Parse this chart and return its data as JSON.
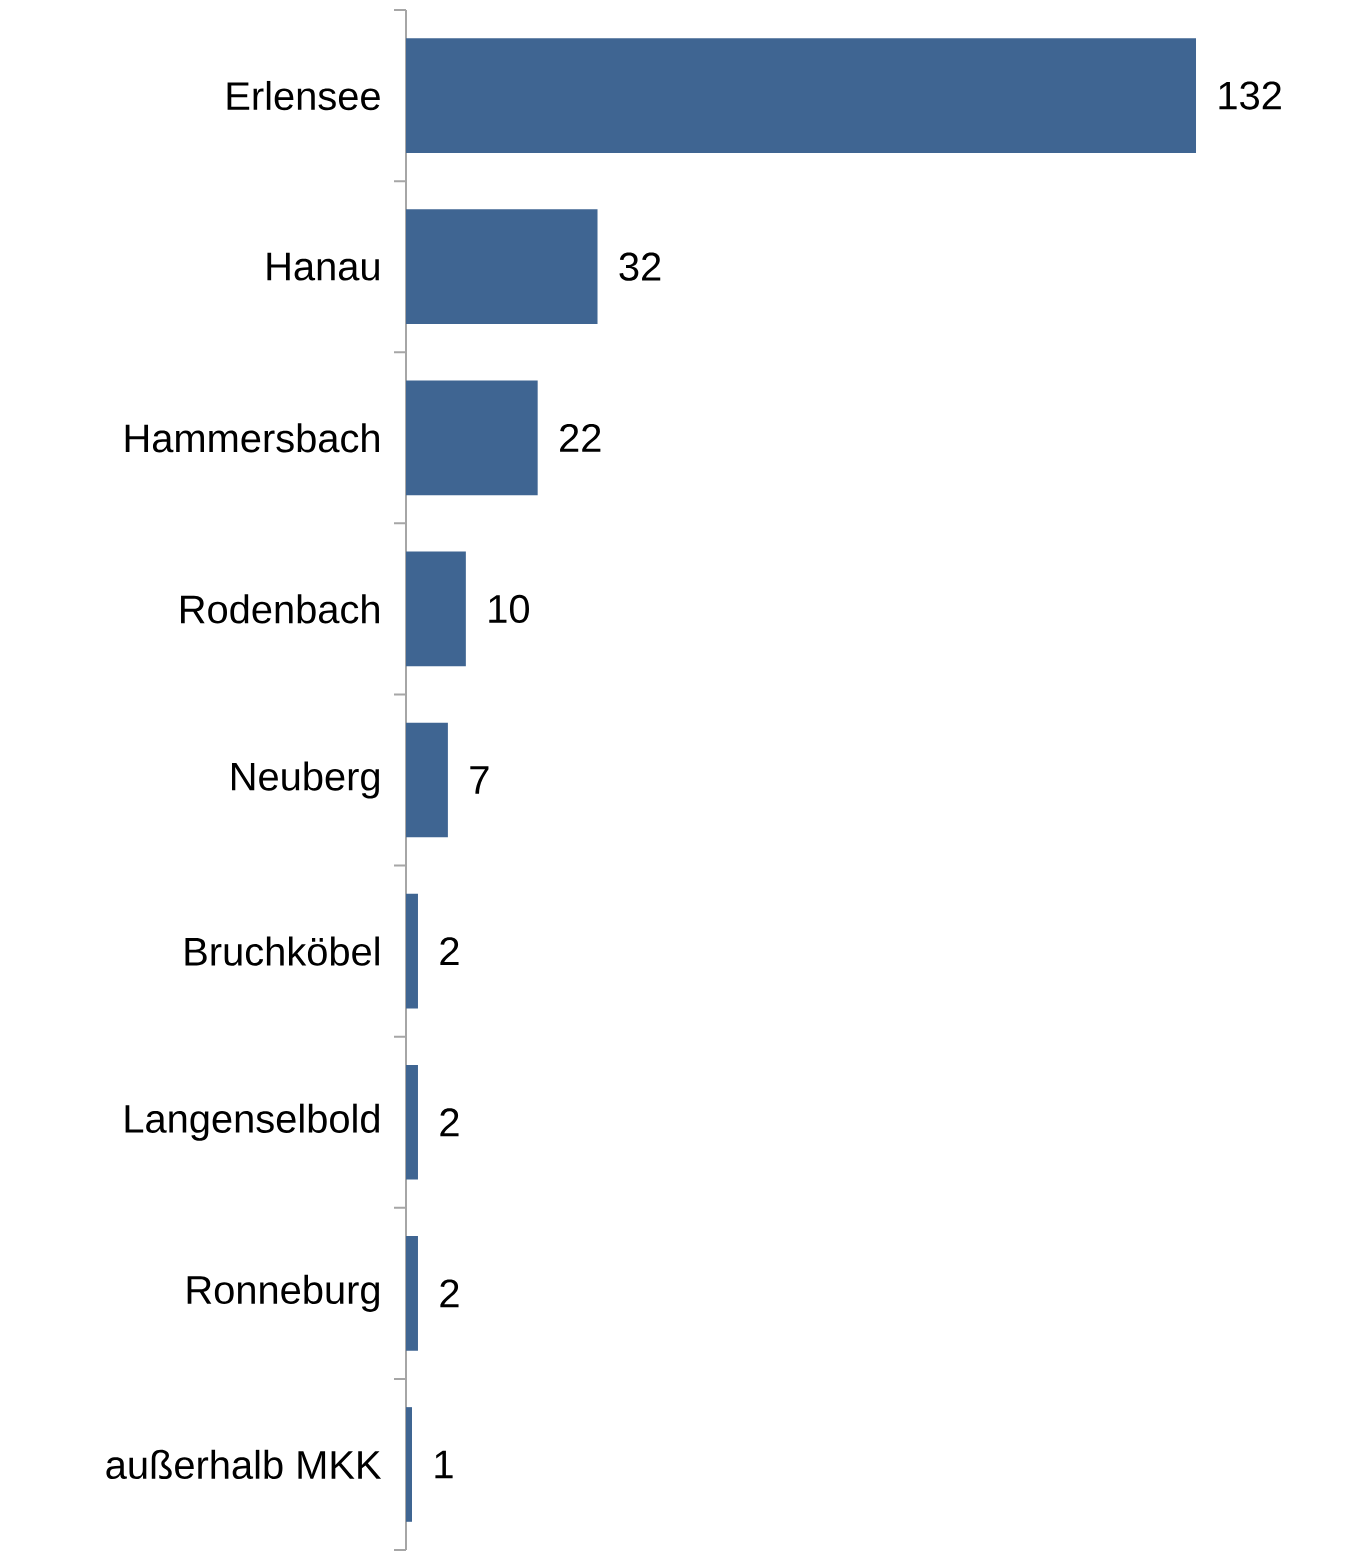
{
  "chart_data": {
    "type": "bar",
    "orientation": "horizontal",
    "categories": [
      "Erlensee",
      "Hanau",
      "Hammersbach",
      "Rodenbach",
      "Neuberg",
      "Bruchköbel",
      "Langenselbold",
      "Ronneburg",
      "außerhalb MKK"
    ],
    "values": [
      132,
      32,
      22,
      10,
      7,
      2,
      2,
      2,
      1
    ],
    "color": "#3f6592",
    "data_labels": true
  }
}
